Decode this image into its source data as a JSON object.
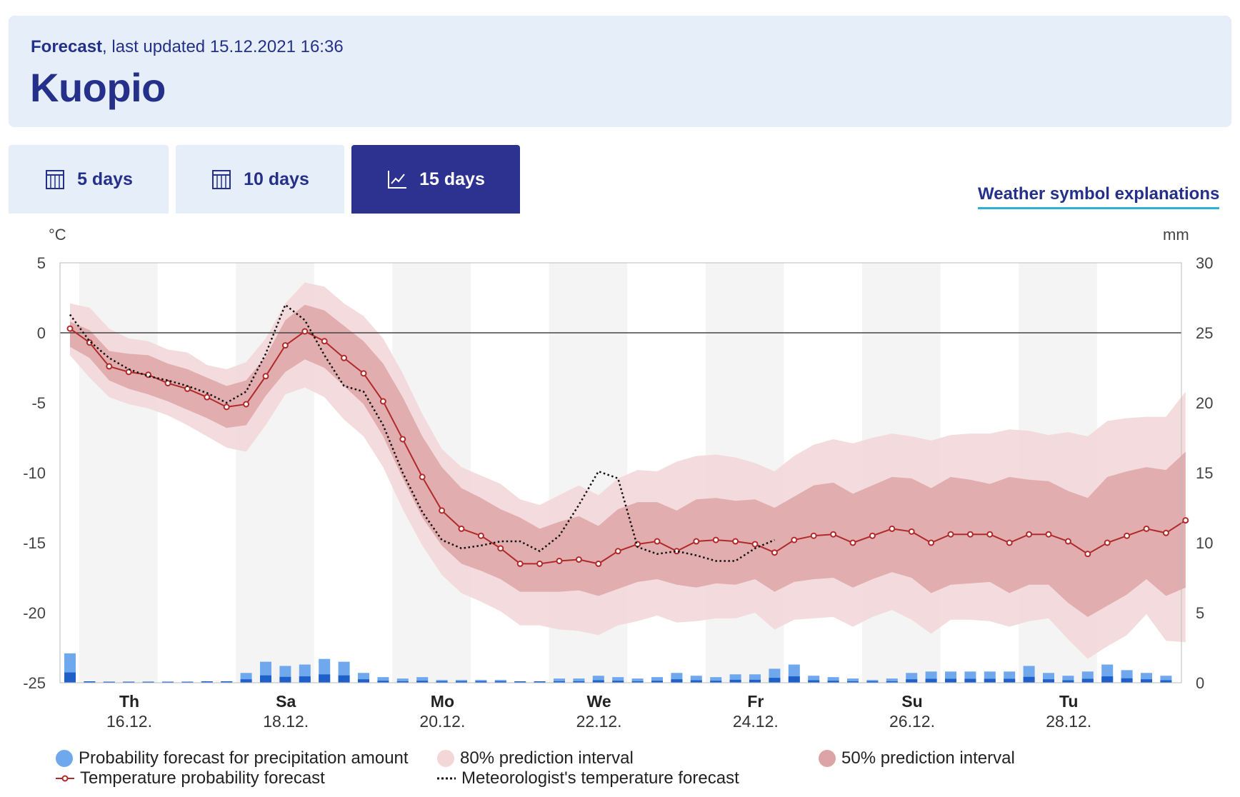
{
  "header": {
    "subtitle_bold": "Forecast",
    "subtitle_rest": ", last updated 15.12.2021 16:36",
    "city": "Kuopio"
  },
  "tabs": [
    {
      "label": "5 days",
      "icon": "calendar-icon",
      "active": false
    },
    {
      "label": "10 days",
      "icon": "calendar-icon",
      "active": false
    },
    {
      "label": "15 days",
      "icon": "line-chart-icon",
      "active": true
    }
  ],
  "symbol_link": "Weather symbol explanations",
  "colors": {
    "band80": "#f2d6d8",
    "band50": "#dda4a7",
    "temp_line": "#b02a2a",
    "precip": "#6fa8ec",
    "precip_dark": "#1f5fc8",
    "tab_active": "#2d3290",
    "header_bg": "#e6eef9"
  },
  "chart_data": {
    "type": "line",
    "left_unit": "°C",
    "right_unit": "mm",
    "y_left_range": [
      -25,
      5
    ],
    "y_right_range": [
      0,
      30
    ],
    "y_left_ticks": [
      "5",
      "0",
      "-5",
      "-10",
      "-15",
      "-20",
      "-25"
    ],
    "y_right_ticks": [
      "30",
      "25",
      "20",
      "15",
      "10",
      "5",
      "0"
    ],
    "day_labels": [
      {
        "day": "Th",
        "date": "16.12."
      },
      {
        "day": "Sa",
        "date": "18.12."
      },
      {
        "day": "Mo",
        "date": "20.12."
      },
      {
        "day": "We",
        "date": "22.12."
      },
      {
        "day": "Fr",
        "date": "24.12."
      },
      {
        "day": "Su",
        "date": "26.12."
      },
      {
        "day": "Tu",
        "date": "28.12."
      }
    ],
    "temperature_probability": [
      0.3,
      -0.7,
      -2.4,
      -2.8,
      -3.0,
      -3.6,
      -4.0,
      -4.6,
      -5.3,
      -5.1,
      -3.1,
      -0.9,
      0.1,
      -0.6,
      -1.8,
      -2.9,
      -4.9,
      -7.6,
      -10.3,
      -12.7,
      -14.0,
      -14.5,
      -15.4,
      -16.5,
      -16.5,
      -16.3,
      -16.2,
      -16.5,
      -15.6,
      -15.1,
      -14.9,
      -15.6,
      -14.9,
      -14.8,
      -14.9,
      -15.1,
      -15.7,
      -14.8,
      -14.5,
      -14.4,
      -15.0,
      -14.5,
      -14.0,
      -14.2,
      -15.0,
      -14.4,
      -14.4,
      -14.4,
      -15.0,
      -14.4,
      -14.4,
      -14.9,
      -15.8,
      -15.0,
      -14.5,
      -14.0,
      -14.3,
      -13.4
    ],
    "band50_upper": [
      0.8,
      0.2,
      -1.3,
      -1.5,
      -1.6,
      -2.2,
      -2.6,
      -3.2,
      -3.8,
      -3.4,
      -1.7,
      0.9,
      2.0,
      1.6,
      0.5,
      -0.6,
      -2.2,
      -4.6,
      -7.4,
      -9.6,
      -11.1,
      -11.8,
      -12.6,
      -13.2,
      -14.0,
      -13.5,
      -13.1,
      -13.8,
      -12.6,
      -12.1,
      -12.1,
      -12.7,
      -11.9,
      -11.8,
      -12.0,
      -11.9,
      -12.5,
      -11.7,
      -10.9,
      -10.7,
      -11.5,
      -10.9,
      -10.3,
      -10.4,
      -11.1,
      -10.3,
      -10.5,
      -10.8,
      -10.3,
      -10.5,
      -10.6,
      -11.3,
      -11.8,
      -10.3,
      -9.9,
      -9.6,
      -9.8,
      -8.5
    ],
    "band50_lower": [
      -1.0,
      -1.8,
      -3.4,
      -4.0,
      -4.4,
      -4.9,
      -5.5,
      -6.1,
      -6.8,
      -6.6,
      -4.5,
      -2.8,
      -1.9,
      -2.5,
      -3.8,
      -5.1,
      -7.4,
      -10.4,
      -13.2,
      -15.2,
      -16.5,
      -17.0,
      -17.6,
      -18.5,
      -18.5,
      -18.5,
      -18.4,
      -18.8,
      -18.3,
      -17.8,
      -17.6,
      -18.0,
      -18.2,
      -17.9,
      -18.0,
      -17.6,
      -18.5,
      -17.8,
      -17.6,
      -17.5,
      -18.2,
      -17.6,
      -17.1,
      -17.5,
      -18.6,
      -18.0,
      -17.9,
      -17.8,
      -18.6,
      -18.0,
      -18.0,
      -19.3,
      -20.3,
      -19.5,
      -18.7,
      -17.6,
      -18.8,
      -18.2
    ],
    "band80_upper": [
      2.1,
      1.8,
      0.3,
      -0.4,
      -0.6,
      -1.2,
      -1.4,
      -2.3,
      -2.6,
      -2.1,
      -0.4,
      2.1,
      3.6,
      3.3,
      2.1,
      1.2,
      -0.4,
      -2.9,
      -5.8,
      -8.3,
      -9.6,
      -10.2,
      -10.8,
      -11.9,
      -12.3,
      -11.6,
      -10.9,
      -11.6,
      -10.4,
      -9.8,
      -9.9,
      -9.2,
      -8.8,
      -8.7,
      -8.9,
      -9.3,
      -9.9,
      -8.8,
      -8.0,
      -7.6,
      -7.9,
      -7.5,
      -7.2,
      -7.4,
      -7.7,
      -7.3,
      -7.2,
      -7.2,
      -6.9,
      -7.0,
      -7.3,
      -7.1,
      -7.4,
      -6.3,
      -6.1,
      -6.0,
      -6.0,
      -4.2
    ],
    "band80_lower": [
      -1.6,
      -3.2,
      -4.6,
      -5.1,
      -5.4,
      -5.9,
      -6.6,
      -7.4,
      -8.2,
      -8.5,
      -6.6,
      -4.4,
      -3.9,
      -4.6,
      -6.2,
      -7.4,
      -9.6,
      -12.6,
      -15.2,
      -17.3,
      -18.6,
      -19.2,
      -19.9,
      -20.9,
      -20.9,
      -21.2,
      -21.3,
      -21.6,
      -20.9,
      -20.6,
      -20.2,
      -20.7,
      -20.6,
      -20.4,
      -20.4,
      -20.0,
      -21.2,
      -20.5,
      -20.4,
      -20.3,
      -21.0,
      -20.3,
      -19.8,
      -20.5,
      -21.5,
      -20.5,
      -20.5,
      -20.6,
      -21.0,
      -20.6,
      -20.4,
      -21.9,
      -23.3,
      -22.4,
      -21.6,
      -20.1,
      -22.0,
      -22.1
    ],
    "meteorologist_temperature": [
      1.3,
      -0.6,
      -1.8,
      -2.6,
      -3.1,
      -3.4,
      -3.8,
      -4.3,
      -5.0,
      -4.2,
      -1.5,
      2.0,
      0.9,
      -1.6,
      -3.8,
      -4.2,
      -6.6,
      -10.0,
      -12.8,
      -14.8,
      -15.4,
      -15.2,
      -14.9,
      -14.9,
      -15.6,
      -14.5,
      -12.3,
      -9.9,
      -10.4,
      -15.3,
      -15.8,
      -15.6,
      -15.9,
      -16.3,
      -16.3,
      -15.4,
      -14.8
    ],
    "precipitation_mm": [
      2.1,
      0.1,
      0.05,
      0.05,
      0.05,
      0.05,
      0.05,
      0.1,
      0.1,
      0.7,
      1.5,
      1.2,
      1.3,
      1.7,
      1.5,
      0.7,
      0.4,
      0.3,
      0.4,
      0.2,
      0.2,
      0.2,
      0.2,
      0.1,
      0.1,
      0.3,
      0.3,
      0.5,
      0.4,
      0.3,
      0.4,
      0.7,
      0.5,
      0.4,
      0.6,
      0.6,
      1.0,
      1.3,
      0.5,
      0.4,
      0.3,
      0.2,
      0.3,
      0.7,
      0.8,
      0.8,
      0.8,
      0.8,
      0.8,
      1.2,
      0.7,
      0.5,
      0.8,
      1.3,
      0.9,
      0.7,
      0.5
    ]
  },
  "legend": {
    "precip": "Probability forecast for precipitation amount",
    "band80": "80% prediction interval",
    "band50": "50% prediction interval",
    "temp": "Temperature probability forecast",
    "meteo": "Meteorologist's temperature forecast"
  }
}
